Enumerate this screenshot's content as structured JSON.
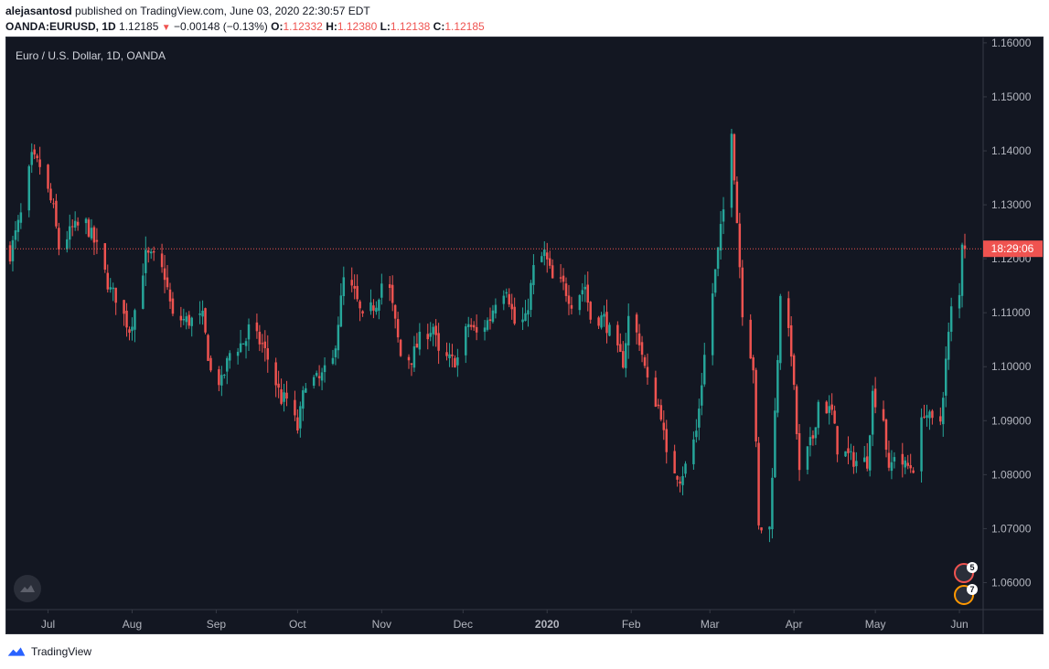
{
  "header": {
    "author": "alejasantosd",
    "published_text": "published on TradingView.com, June 03, 2020 22:30:57 EDT",
    "symbol": "OANDA:EURUSD, 1D",
    "last": "1.12185",
    "change": "−0.00148 (−0.13%)",
    "o_label": "O:",
    "o_value": "1.12332",
    "h_label": "H:",
    "h_value": "1.12380",
    "l_label": "L:",
    "l_value": "1.12138",
    "c_label": "C:",
    "c_value": "1.12185"
  },
  "legend": {
    "title": "Euro / U.S. Dollar, 1D, OANDA"
  },
  "countdown": "18:29:06",
  "events": [
    {
      "count": "5"
    },
    {
      "count": "7"
    }
  ],
  "footer": {
    "brand": "TradingView"
  },
  "colors": {
    "up": "#26a69a",
    "down": "#ef5350",
    "background": "#131722",
    "axis_text": "#b2b5be"
  },
  "chart_data": {
    "type": "candlestick",
    "title": "Euro / U.S. Dollar, 1D, OANDA",
    "ylim": [
      1.055,
      1.161
    ],
    "y_ticks": [
      "1.16000",
      "1.15000",
      "1.14000",
      "1.13000",
      "1.12000",
      "1.11000",
      "1.10000",
      "1.09000",
      "1.08000",
      "1.07000",
      "1.06000"
    ],
    "x_ticks": [
      {
        "label": "Jul",
        "date": "2019-07-01"
      },
      {
        "label": "Aug",
        "date": "2019-08-01"
      },
      {
        "label": "Sep",
        "date": "2019-09-01"
      },
      {
        "label": "Oct",
        "date": "2019-10-01"
      },
      {
        "label": "Nov",
        "date": "2019-11-01"
      },
      {
        "label": "Dec",
        "date": "2019-12-01"
      },
      {
        "label": "2020",
        "date": "2020-01-01"
      },
      {
        "label": "Feb",
        "date": "2020-02-01"
      },
      {
        "label": "Mar",
        "date": "2020-03-01"
      },
      {
        "label": "Apr",
        "date": "2020-04-01"
      },
      {
        "label": "May",
        "date": "2020-05-01"
      },
      {
        "label": "Jun",
        "date": "2020-06-01"
      }
    ],
    "date_range": [
      "2019-06-17",
      "2020-06-03"
    ],
    "last_price": 1.12185,
    "series_close_path": [
      [
        "2019-06-17",
        1.121
      ],
      [
        "2019-06-21",
        1.128
      ],
      [
        "2019-06-25",
        1.1385
      ],
      [
        "2019-06-28",
        1.1372
      ],
      [
        "2019-07-03",
        1.129
      ],
      [
        "2019-07-05",
        1.122
      ],
      [
        "2019-07-10",
        1.1255
      ],
      [
        "2019-07-15",
        1.1265
      ],
      [
        "2019-07-19",
        1.122
      ],
      [
        "2019-07-24",
        1.114
      ],
      [
        "2019-07-26",
        1.113
      ],
      [
        "2019-07-31",
        1.107
      ],
      [
        "2019-08-02",
        1.1105
      ],
      [
        "2019-08-06",
        1.1205
      ],
      [
        "2019-08-09",
        1.12
      ],
      [
        "2019-08-13",
        1.117
      ],
      [
        "2019-08-16",
        1.109
      ],
      [
        "2019-08-22",
        1.1085
      ],
      [
        "2019-08-27",
        1.109
      ],
      [
        "2019-08-30",
        1.099
      ],
      [
        "2019-09-03",
        1.097
      ],
      [
        "2019-09-06",
        1.1025
      ],
      [
        "2019-09-12",
        1.105
      ],
      [
        "2019-09-13",
        1.107
      ],
      [
        "2019-09-18",
        1.104
      ],
      [
        "2019-09-20",
        1.1015
      ],
      [
        "2019-09-25",
        1.094
      ],
      [
        "2019-09-27",
        1.094
      ],
      [
        "2019-10-01",
        1.0885
      ],
      [
        "2019-10-04",
        1.0975
      ],
      [
        "2019-10-09",
        1.0975
      ],
      [
        "2019-10-14",
        1.101
      ],
      [
        "2019-10-18",
        1.116
      ],
      [
        "2019-10-22",
        1.1135
      ],
      [
        "2019-10-25",
        1.1085
      ],
      [
        "2019-10-30",
        1.112
      ],
      [
        "2019-11-01",
        1.1155
      ],
      [
        "2019-11-04",
        1.114
      ],
      [
        "2019-11-08",
        1.102
      ],
      [
        "2019-11-12",
        1.1015
      ],
      [
        "2019-11-15",
        1.105
      ],
      [
        "2019-11-20",
        1.1075
      ],
      [
        "2019-11-22",
        1.102
      ],
      [
        "2019-11-27",
        1.101
      ],
      [
        "2019-11-29",
        1.1015
      ],
      [
        "2019-12-03",
        1.108
      ],
      [
        "2019-12-06",
        1.106
      ],
      [
        "2019-12-11",
        1.109
      ],
      [
        "2019-12-13",
        1.1125
      ],
      [
        "2019-12-17",
        1.115
      ],
      [
        "2019-12-20",
        1.108
      ],
      [
        "2019-12-24",
        1.1085
      ],
      [
        "2019-12-27",
        1.118
      ],
      [
        "2019-12-31",
        1.121
      ],
      [
        "2020-01-03",
        1.116
      ],
      [
        "2020-01-07",
        1.115
      ],
      [
        "2020-01-10",
        1.112
      ],
      [
        "2020-01-15",
        1.115
      ],
      [
        "2020-01-17",
        1.109
      ],
      [
        "2020-01-22",
        1.109
      ],
      [
        "2020-01-27",
        1.1025
      ],
      [
        "2020-01-29",
        1.101
      ],
      [
        "2020-01-31",
        1.109
      ],
      [
        "2020-02-04",
        1.105
      ],
      [
        "2020-02-07",
        1.097
      ],
      [
        "2020-02-12",
        1.0915
      ],
      [
        "2020-02-14",
        1.083
      ],
      [
        "2020-02-19",
        1.0795
      ],
      [
        "2020-02-21",
        1.0815
      ],
      [
        "2020-02-25",
        1.088
      ],
      [
        "2020-02-28",
        1.102
      ],
      [
        "2020-03-03",
        1.1175
      ],
      [
        "2020-03-06",
        1.129
      ],
      [
        "2020-03-09",
        1.1445
      ],
      [
        "2020-03-11",
        1.127
      ],
      [
        "2020-03-13",
        1.1105
      ],
      [
        "2020-03-17",
        1.1
      ],
      [
        "2020-03-19",
        1.07
      ],
      [
        "2020-03-23",
        1.07
      ],
      [
        "2020-03-26",
        1.102
      ],
      [
        "2020-03-27",
        1.114
      ],
      [
        "2020-03-31",
        1.103
      ],
      [
        "2020-04-03",
        1.08
      ],
      [
        "2020-04-08",
        1.087
      ],
      [
        "2020-04-10",
        1.0935
      ],
      [
        "2020-04-15",
        1.0915
      ],
      [
        "2020-04-17",
        1.085
      ],
      [
        "2020-04-22",
        1.083
      ],
      [
        "2020-04-24",
        1.0825
      ],
      [
        "2020-04-28",
        1.0825
      ],
      [
        "2020-04-30",
        1.095
      ],
      [
        "2020-05-04",
        1.0905
      ],
      [
        "2020-05-06",
        1.08
      ],
      [
        "2020-05-08",
        1.084
      ],
      [
        "2020-05-12",
        1.0815
      ],
      [
        "2020-05-15",
        1.0815
      ],
      [
        "2020-05-19",
        1.092
      ],
      [
        "2020-05-22",
        1.0895
      ],
      [
        "2020-05-25",
        1.09
      ],
      [
        "2020-05-27",
        1.101
      ],
      [
        "2020-05-29",
        1.1105
      ],
      [
        "2020-06-01",
        1.113
      ],
      [
        "2020-06-02",
        1.1235
      ],
      [
        "2020-06-03",
        1.12185
      ]
    ]
  }
}
